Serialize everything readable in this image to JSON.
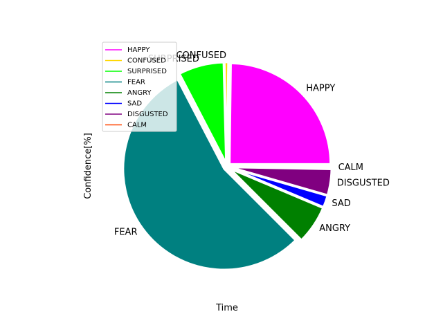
{
  "chart_data": {
    "type": "pie",
    "xlabel": "Time",
    "ylabel": "Confidence[%]",
    "legend_position": "top-left",
    "slices": [
      {
        "label": "HAPPY",
        "value": 25.0,
        "color": "#ff00ff"
      },
      {
        "label": "CONFUSED",
        "value": 0.6,
        "color": "#ffd700"
      },
      {
        "label": "SURPRISED",
        "value": 7.3,
        "color": "#00ff00"
      },
      {
        "label": "FEAR",
        "value": 55.3,
        "color": "#008080"
      },
      {
        "label": "ANGRY",
        "value": 6.2,
        "color": "#008000"
      },
      {
        "label": "SAD",
        "value": 1.9,
        "color": "#0000ff"
      },
      {
        "label": "DISGUSTED",
        "value": 4.2,
        "color": "#800080"
      },
      {
        "label": "CALM",
        "value": 0.3,
        "color": "#ff4500"
      }
    ]
  }
}
